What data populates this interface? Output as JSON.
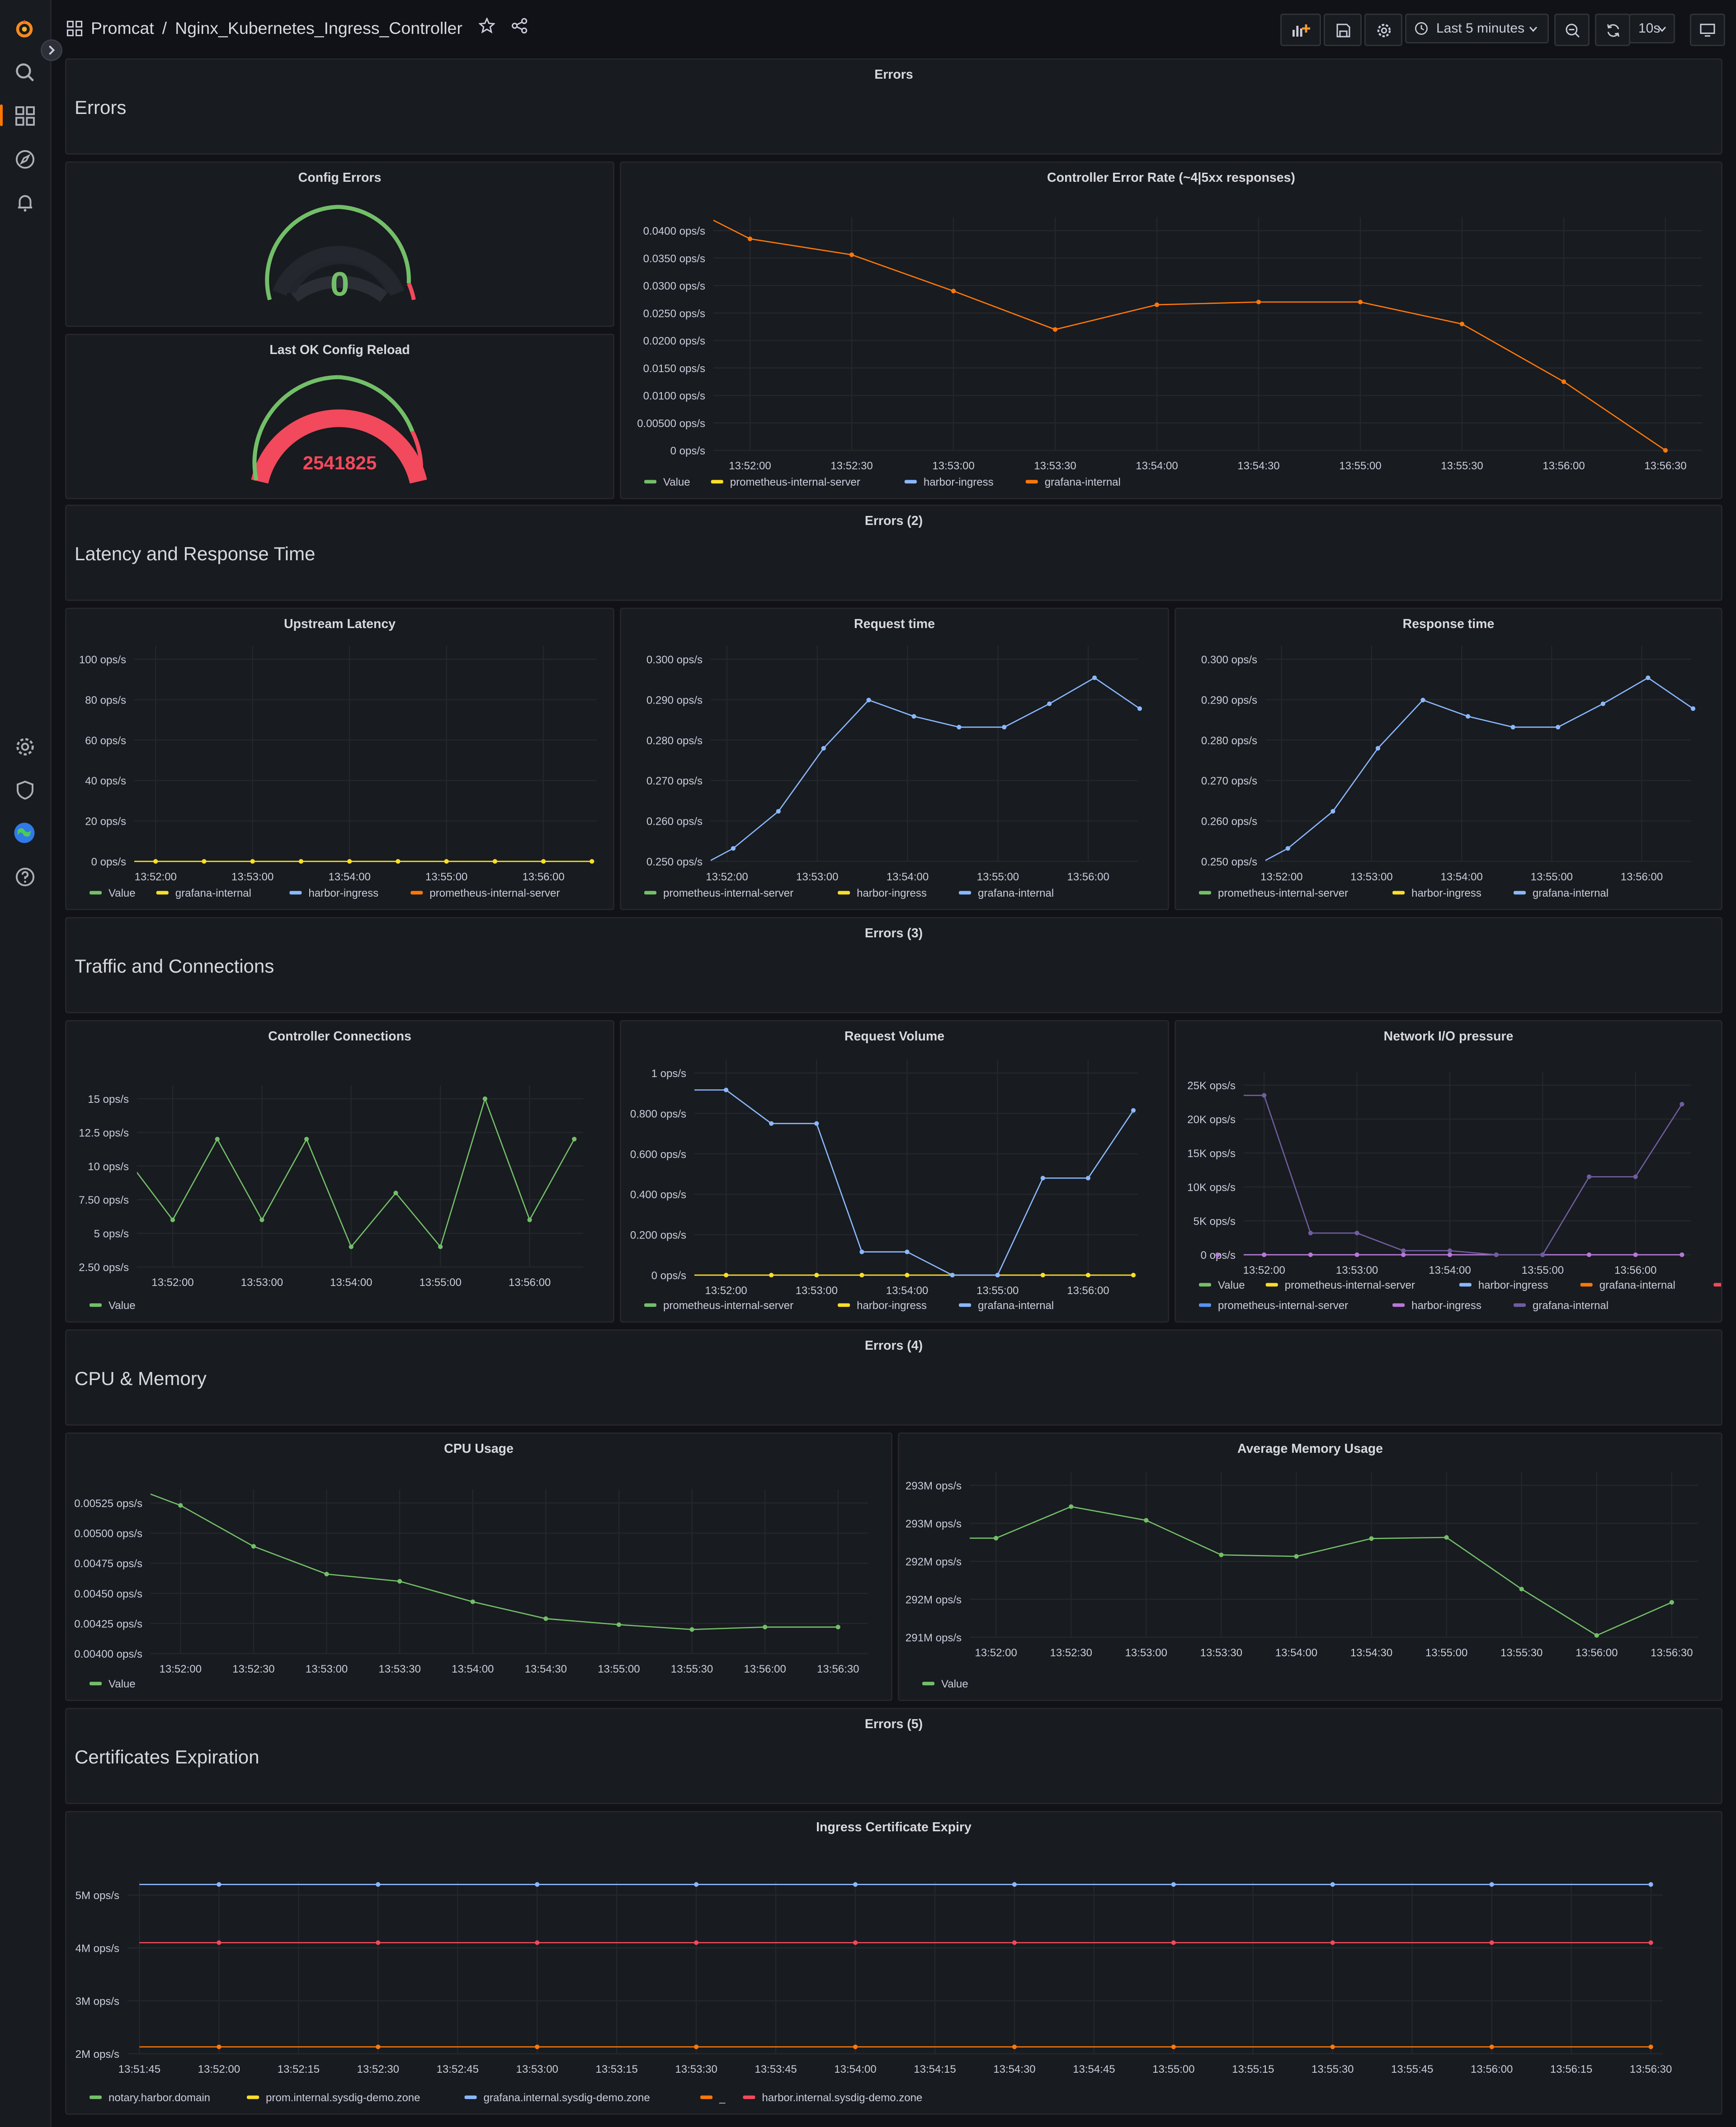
{
  "app": {
    "breadcrumb_folder": "Promcat",
    "breadcrumb_separator": "/",
    "dashboard_title": "Nginx_Kubernetes_Ingress_Controller",
    "time_range": "Last 5 minutes",
    "refresh_interval": "10s"
  },
  "sidebar": {
    "items": [
      "grafana-logo-icon",
      "search-icon",
      "dashboards-icon",
      "explore-icon",
      "alerting-icon",
      "configuration-icon",
      "server-admin-icon",
      "user-avatar",
      "help-icon"
    ],
    "active_accent": "#ff7800"
  },
  "rows": [
    {
      "panel_title": "Errors",
      "row_title": "Errors"
    },
    {
      "panel_title": "Errors (2)",
      "row_title": "Latency and Response Time"
    },
    {
      "panel_title": "Errors (3)",
      "row_title": "Traffic and Connections"
    },
    {
      "panel_title": "Errors (4)",
      "row_title": "CPU & Memory"
    },
    {
      "panel_title": "Errors (5)",
      "row_title": "Certificates Expiration"
    }
  ],
  "gauges": {
    "config_errors": {
      "title": "Config Errors",
      "value": "0",
      "color": "#73bf69"
    },
    "last_ok_reload": {
      "title": "Last OK Config Reload",
      "value": "2541825",
      "color": "#f2495c"
    }
  },
  "chart_data": [
    {
      "id": "error_rate",
      "type": "line",
      "title": "Controller Error Rate (~4|5xx responses)",
      "y_ticks": [
        "0.0400 ops/s",
        "0.0350 ops/s",
        "0.0300 ops/s",
        "0.0250 ops/s",
        "0.0200 ops/s",
        "0.0150 ops/s",
        "0.0100 ops/s",
        "0.00500 ops/s",
        "0 ops/s"
      ],
      "ylim": [
        0,
        0.04
      ],
      "x_ticks": [
        "13:52:00",
        "13:52:30",
        "13:53:00",
        "13:53:30",
        "13:54:00",
        "13:54:30",
        "13:55:00",
        "13:55:30",
        "13:56:00",
        "13:56:30"
      ],
      "xlim": [
        -0.36,
        9.36
      ],
      "series": [
        {
          "legend": "Value",
          "color": "#73bf69",
          "x": [],
          "y": []
        },
        {
          "legend": "prometheus-internal-server",
          "color": "#fade2a",
          "x": [],
          "y": []
        },
        {
          "legend": "harbor-ingress",
          "color": "#8ab8ff",
          "x": [],
          "y": []
        },
        {
          "legend": "grafana-internal",
          "color": "#ff780a",
          "x": [
            -0.5,
            0,
            1,
            2,
            3,
            4,
            5,
            6,
            7,
            8,
            9
          ],
          "y": [
            0.0432,
            0.0385,
            0.0356,
            0.029,
            0.022,
            0.0265,
            0.027,
            0.027,
            0.023,
            0.0125,
            0
          ],
          "markers_from": 1
        }
      ]
    },
    {
      "id": "upstream_latency",
      "type": "line",
      "title": "Upstream Latency",
      "y_ticks": [
        "100 ops/s",
        "80 ops/s",
        "60 ops/s",
        "40 ops/s",
        "20 ops/s",
        "0 ops/s"
      ],
      "ylim": [
        0,
        100
      ],
      "x_ticks": [
        "13:52:00",
        "13:53:00",
        "13:54:00",
        "13:55:00",
        "13:56:00"
      ],
      "xlim": [
        -0.22,
        4.55
      ],
      "series": [
        {
          "legend": "Value",
          "color": "#73bf69",
          "x": [],
          "y": []
        },
        {
          "legend": "grafana-internal",
          "color": "#fade2a",
          "x": [
            -0.5,
            0,
            0.5,
            1,
            1.5,
            2,
            2.5,
            3,
            3.5,
            4,
            4.5
          ],
          "y": [
            0,
            0,
            0,
            0,
            0,
            0,
            0,
            0,
            0,
            0,
            0
          ],
          "markers_from": 1
        },
        {
          "legend": "harbor-ingress",
          "color": "#8ab8ff",
          "x": [],
          "y": []
        },
        {
          "legend": "prometheus-internal-server",
          "color": "#ff780a",
          "x": [],
          "y": []
        }
      ]
    },
    {
      "id": "request_time",
      "type": "line",
      "title": "Request time",
      "y_ticks": [
        "0.300 ops/s",
        "0.290 ops/s",
        "0.280 ops/s",
        "0.270 ops/s",
        "0.260 ops/s",
        "0.250 ops/s"
      ],
      "ylim": [
        0.2455,
        0.3
      ],
      "x_ticks": [
        "13:52:00",
        "13:53:00",
        "13:54:00",
        "13:55:00",
        "13:56:00"
      ],
      "xlim": [
        -0.18,
        4.55
      ],
      "series": [
        {
          "legend": "prometheus-internal-server",
          "color": "#73bf69",
          "x": [],
          "y": []
        },
        {
          "legend": "harbor-ingress",
          "color": "#fade2a",
          "x": [],
          "y": []
        },
        {
          "legend": "grafana-internal",
          "color": "#8ab8ff",
          "x": [
            -0.2,
            0.07,
            0.57,
            1.07,
            1.57,
            2.07,
            2.57,
            3.07,
            3.57,
            4.07,
            4.57
          ],
          "y": [
            0.2455,
            0.249,
            0.259,
            0.276,
            0.289,
            0.2846,
            0.2817,
            0.2817,
            0.288,
            0.295,
            0.2867
          ],
          "markers_from": 1
        }
      ]
    },
    {
      "id": "response_time",
      "type": "line",
      "title": "Response time",
      "y_ticks": [
        "0.300 ops/s",
        "0.290 ops/s",
        "0.280 ops/s",
        "0.270 ops/s",
        "0.260 ops/s",
        "0.250 ops/s"
      ],
      "ylim": [
        0.2455,
        0.3
      ],
      "x_ticks": [
        "13:52:00",
        "13:53:00",
        "13:54:00",
        "13:55:00",
        "13:56:00"
      ],
      "xlim": [
        -0.18,
        4.55
      ],
      "series": [
        {
          "legend": "prometheus-internal-server",
          "color": "#73bf69",
          "x": [],
          "y": []
        },
        {
          "legend": "harbor-ingress",
          "color": "#fade2a",
          "x": [],
          "y": []
        },
        {
          "legend": "grafana-internal",
          "color": "#8ab8ff",
          "x": [
            -0.2,
            0.07,
            0.57,
            1.07,
            1.57,
            2.07,
            2.57,
            3.07,
            3.57,
            4.07,
            4.57
          ],
          "y": [
            0.2455,
            0.249,
            0.259,
            0.276,
            0.289,
            0.2846,
            0.2817,
            0.2817,
            0.288,
            0.295,
            0.2867
          ],
          "markers_from": 1
        }
      ]
    },
    {
      "id": "controller_connections",
      "type": "line",
      "title": "Controller Connections",
      "y_ticks": [
        "15 ops/s",
        "12.5 ops/s",
        "10 ops/s",
        "7.50 ops/s",
        "5 ops/s",
        "2.50 ops/s"
      ],
      "ylim": [
        2.5,
        15
      ],
      "x_ticks": [
        "13:52:00",
        "13:53:00",
        "13:54:00",
        "13:55:00",
        "13:56:00"
      ],
      "xlim": [
        -0.4,
        4.6
      ],
      "series": [
        {
          "legend": "Value",
          "color": "#73bf69",
          "x": [
            -0.5,
            0,
            0.5,
            1,
            1.5,
            2,
            2.5,
            3,
            3.5,
            4,
            4.5
          ],
          "y": [
            10.4,
            6,
            12,
            6,
            12,
            4,
            8,
            4,
            15,
            6,
            12
          ],
          "markers_from": 1
        }
      ]
    },
    {
      "id": "request_volume",
      "type": "line",
      "title": "Request Volume",
      "y_ticks": [
        "1 ops/s",
        "0.800 ops/s",
        "0.600 ops/s",
        "0.400 ops/s",
        "0.200 ops/s",
        "0 ops/s"
      ],
      "ylim": [
        0,
        1
      ],
      "x_ticks": [
        "13:52:00",
        "13:53:00",
        "13:54:00",
        "13:55:00",
        "13:56:00"
      ],
      "xlim": [
        -0.35,
        4.55
      ],
      "series": [
        {
          "legend": "prometheus-internal-server",
          "color": "#73bf69",
          "x": [],
          "y": []
        },
        {
          "legend": "harbor-ingress",
          "color": "#fade2a",
          "x": [
            -0.5,
            0,
            0.5,
            1,
            1.5,
            2,
            2.5,
            3,
            3.5,
            4,
            4.5
          ],
          "y": [
            0,
            0,
            0,
            0,
            0,
            0,
            0,
            0,
            0,
            0,
            0
          ],
          "markers_from": 1
        },
        {
          "legend": "grafana-internal",
          "color": "#8ab8ff",
          "x": [
            -0.5,
            0,
            0.5,
            1,
            1.5,
            2,
            2.5,
            3,
            3.5,
            4,
            4.5
          ],
          "y": [
            0.916,
            0.916,
            0.75,
            0.75,
            0.115,
            0.115,
            0,
            0,
            0.48,
            0.48,
            0.815
          ],
          "markers_from": 1
        }
      ]
    },
    {
      "id": "network_io",
      "type": "line",
      "title": "Network I/O pressure",
      "y_ticks": [
        "25K ops/s",
        "20K ops/s",
        "15K ops/s",
        "10K ops/s",
        "5K ops/s",
        "0 ops/s"
      ],
      "ylim": [
        0,
        25000
      ],
      "x_ticks": [
        "13:52:00",
        "13:53:00",
        "13:54:00",
        "13:55:00",
        "13:56:00"
      ],
      "xlim": [
        -0.22,
        4.6
      ],
      "series": [
        {
          "legend": "Value",
          "color": "#73bf69",
          "x": [],
          "y": []
        },
        {
          "legend": "prometheus-internal-server",
          "color": "#fade2a",
          "x": [],
          "y": []
        },
        {
          "legend": "harbor-ingress",
          "color": "#8ab8ff",
          "x": [],
          "y": []
        },
        {
          "legend": "grafana-internal",
          "color": "#ff780a",
          "x": [],
          "y": []
        },
        {
          "legend": "Value",
          "color": "#f2495c",
          "x": [],
          "y": []
        },
        {
          "legend": "prometheus-internal-server",
          "color": "#5794f2",
          "x": [],
          "y": []
        },
        {
          "legend": "harbor-ingress",
          "color": "#b877d9",
          "x": [
            -0.5,
            0,
            0.5,
            1,
            1.5,
            2,
            2.5,
            3,
            3.5,
            4,
            4.5
          ],
          "y": [
            0,
            0,
            0,
            0,
            0,
            0,
            0,
            0,
            0,
            0,
            0
          ],
          "markers_from": 0
        },
        {
          "legend": "grafana-internal",
          "color": "#705da0",
          "x": [
            -0.5,
            0,
            0.5,
            1,
            1.5,
            2,
            2.5,
            3,
            3.5,
            4,
            4.5
          ],
          "y": [
            23500,
            23500,
            3200,
            3200,
            600,
            600,
            0,
            0,
            11500,
            11500,
            22200
          ],
          "markers_from": 1
        }
      ]
    },
    {
      "id": "cpu_usage",
      "type": "line",
      "title": "CPU Usage",
      "y_ticks": [
        "0.00525 ops/s",
        "0.00500 ops/s",
        "0.00475 ops/s",
        "0.00450 ops/s",
        "0.00425 ops/s",
        "0.00400 ops/s"
      ],
      "ylim": [
        0.004,
        0.00525
      ],
      "x_ticks": [
        "13:52:00",
        "13:52:30",
        "13:53:00",
        "13:53:30",
        "13:54:00",
        "13:54:30",
        "13:55:00",
        "13:55:30",
        "13:56:00",
        "13:56:30"
      ],
      "xlim": [
        -0.41,
        9.41
      ],
      "series": [
        {
          "legend": "Value",
          "color": "#73bf69",
          "x": [
            -0.7,
            0,
            1,
            2,
            3,
            4,
            5,
            6,
            7,
            8,
            9
          ],
          "y": [
            0.00539,
            0.00523,
            0.00489,
            0.00466,
            0.0046,
            0.00443,
            0.00429,
            0.00424,
            0.0042,
            0.00422,
            0.00422
          ],
          "markers_from": 1
        }
      ]
    },
    {
      "id": "avg_memory",
      "type": "line",
      "title": "Average Memory Usage",
      "y_ticks": [
        "293M ops/s",
        "293M ops/s",
        "292M ops/s",
        "292M ops/s",
        "291M ops/s"
      ],
      "ylim": [
        0,
        4
      ],
      "x_ticks": [
        "13:52:00",
        "13:52:30",
        "13:53:00",
        "13:53:30",
        "13:54:00",
        "13:54:30",
        "13:55:00",
        "13:55:30",
        "13:56:00",
        "13:56:30"
      ],
      "xlim": [
        -0.35,
        9.35
      ],
      "series": [
        {
          "legend": "Value",
          "color": "#73bf69",
          "x": [
            -0.7,
            0,
            1,
            2,
            3,
            4,
            5,
            6,
            7,
            8,
            9
          ],
          "y": [
            2.61,
            2.61,
            3.44,
            3.08,
            2.17,
            2.13,
            2.6,
            2.63,
            1.27,
            0.05,
            0.92
          ],
          "markers_from": 1
        }
      ]
    },
    {
      "id": "cert_expiry",
      "type": "line",
      "title": "Ingress Certificate Expiry",
      "y_ticks": [
        "5M ops/s",
        "4M ops/s",
        "3M ops/s",
        "2M ops/s"
      ],
      "ylim": [
        2000000,
        5000000
      ],
      "x_ticks": [
        "13:51:45",
        "13:52:00",
        "13:52:15",
        "13:52:30",
        "13:52:45",
        "13:53:00",
        "13:53:15",
        "13:53:30",
        "13:53:45",
        "13:54:00",
        "13:54:15",
        "13:54:30",
        "13:54:45",
        "13:55:00",
        "13:55:15",
        "13:55:30",
        "13:55:45",
        "13:56:00",
        "13:56:15",
        "13:56:30"
      ],
      "xlim": [
        -0.15,
        19.15
      ],
      "series": [
        {
          "legend": "notary.harbor.domain",
          "color": "#73bf69",
          "x": [],
          "y": []
        },
        {
          "legend": "prom.internal.sysdig-demo.zone",
          "color": "#fade2a",
          "x": [],
          "y": []
        },
        {
          "legend": "grafana.internal.sysdig-demo.zone",
          "color": "#8ab8ff",
          "x": [
            0,
            1,
            3,
            5,
            7,
            9,
            11,
            13,
            15,
            17,
            19
          ],
          "y": [
            5200000,
            5200000,
            5200000,
            5200000,
            5200000,
            5200000,
            5200000,
            5200000,
            5200000,
            5200000,
            5200000
          ],
          "markers_from": 1
        },
        {
          "legend": "_",
          "color": "#ff780a",
          "x": [
            0,
            1,
            3,
            5,
            7,
            9,
            11,
            13,
            15,
            17,
            19
          ],
          "y": [
            2130000,
            2130000,
            2130000,
            2130000,
            2130000,
            2130000,
            2130000,
            2130000,
            2130000,
            2130000,
            2130000
          ],
          "markers_from": 1
        },
        {
          "legend": "harbor.internal.sysdig-demo.zone",
          "color": "#f2495c",
          "x": [
            0,
            1,
            3,
            5,
            7,
            9,
            11,
            13,
            15,
            17,
            19
          ],
          "y": [
            4100000,
            4100000,
            4100000,
            4100000,
            4100000,
            4100000,
            4100000,
            4100000,
            4100000,
            4100000,
            4100000
          ],
          "markers_from": 1
        }
      ]
    }
  ]
}
